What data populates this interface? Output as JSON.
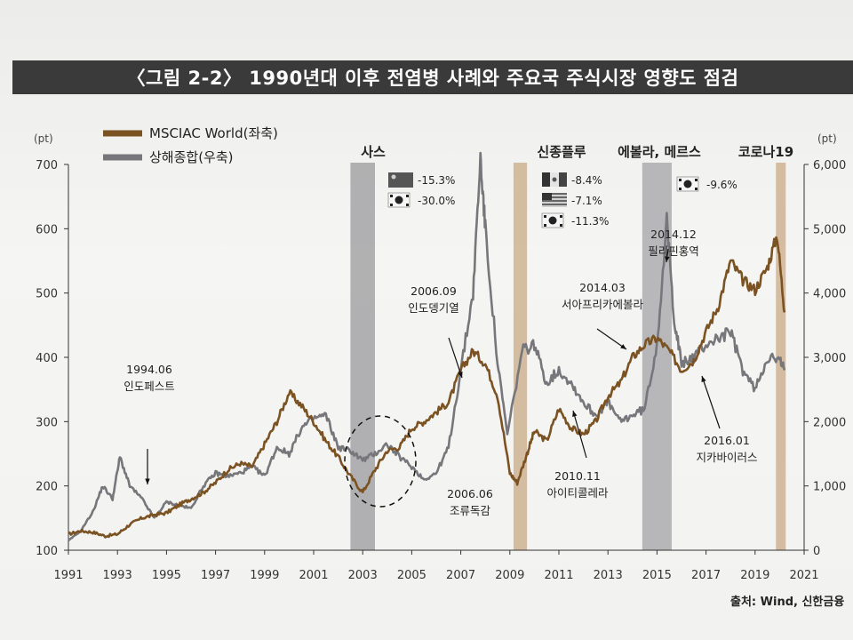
{
  "title": "〈그림 2-2〉 1990년대 이후 전염병 사례와 주요국 주식시장 영향도 점검",
  "source": "출처: Wind, 신한금융",
  "chart_data": {
    "type": "line",
    "x_ticks": [
      "1991",
      "1993",
      "1995",
      "1997",
      "1999",
      "2001",
      "2003",
      "2005",
      "2007",
      "2009",
      "2011",
      "2013",
      "2015",
      "2017",
      "2019",
      "2021"
    ],
    "xlim": [
      1991,
      2021
    ],
    "left_axis": {
      "unit": "(pt)",
      "ylim": [
        100,
        700
      ],
      "ticks": [
        "100",
        "200",
        "300",
        "400",
        "500",
        "600",
        "700"
      ]
    },
    "right_axis": {
      "unit": "(pt)",
      "ylim": [
        0,
        6000
      ],
      "ticks": [
        "0",
        "1,000",
        "2,000",
        "3,000",
        "4,000",
        "5,000",
        "6,000"
      ]
    },
    "legend": {
      "placement": "top-left"
    },
    "series": [
      {
        "name": "MSCIAC World(좌축)",
        "axis": "left",
        "color": "#7b5222",
        "points": [
          [
            1991.0,
            125
          ],
          [
            1991.5,
            130
          ],
          [
            1992.0,
            128
          ],
          [
            1992.5,
            122
          ],
          [
            1993.0,
            125
          ],
          [
            1993.5,
            140
          ],
          [
            1994.0,
            150
          ],
          [
            1994.5,
            155
          ],
          [
            1995.0,
            158
          ],
          [
            1995.5,
            170
          ],
          [
            1996.0,
            180
          ],
          [
            1996.5,
            190
          ],
          [
            1997.0,
            205
          ],
          [
            1997.5,
            225
          ],
          [
            1998.0,
            235
          ],
          [
            1998.5,
            230
          ],
          [
            1999.0,
            265
          ],
          [
            1999.5,
            300
          ],
          [
            2000.0,
            345
          ],
          [
            2000.5,
            325
          ],
          [
            2001.0,
            300
          ],
          [
            2001.5,
            270
          ],
          [
            2002.0,
            245
          ],
          [
            2002.5,
            215
          ],
          [
            2003.0,
            190
          ],
          [
            2003.5,
            225
          ],
          [
            2004.0,
            255
          ],
          [
            2004.5,
            260
          ],
          [
            2005.0,
            290
          ],
          [
            2005.5,
            300
          ],
          [
            2006.0,
            315
          ],
          [
            2006.5,
            330
          ],
          [
            2007.0,
            380
          ],
          [
            2007.5,
            410
          ],
          [
            2008.0,
            390
          ],
          [
            2008.5,
            340
          ],
          [
            2009.0,
            220
          ],
          [
            2009.3,
            205
          ],
          [
            2009.7,
            250
          ],
          [
            2010.0,
            285
          ],
          [
            2010.5,
            270
          ],
          [
            2011.0,
            320
          ],
          [
            2011.5,
            290
          ],
          [
            2012.0,
            280
          ],
          [
            2012.5,
            300
          ],
          [
            2013.0,
            340
          ],
          [
            2013.5,
            360
          ],
          [
            2014.0,
            400
          ],
          [
            2014.5,
            420
          ],
          [
            2015.0,
            430
          ],
          [
            2015.5,
            410
          ],
          [
            2016.0,
            380
          ],
          [
            2016.5,
            395
          ],
          [
            2017.0,
            440
          ],
          [
            2017.5,
            480
          ],
          [
            2018.0,
            550
          ],
          [
            2018.5,
            520
          ],
          [
            2019.0,
            505
          ],
          [
            2019.5,
            540
          ],
          [
            2019.9,
            590
          ],
          [
            2020.2,
            470
          ]
        ]
      },
      {
        "name": "상해종합(우축)",
        "axis": "right",
        "color": "#77777b",
        "points": [
          [
            1991.0,
            150
          ],
          [
            1991.5,
            300
          ],
          [
            1992.0,
            600
          ],
          [
            1992.4,
            1000
          ],
          [
            1992.8,
            800
          ],
          [
            1993.1,
            1450
          ],
          [
            1993.5,
            1000
          ],
          [
            1994.0,
            800
          ],
          [
            1994.5,
            500
          ],
          [
            1995.0,
            750
          ],
          [
            1995.5,
            700
          ],
          [
            1996.0,
            650
          ],
          [
            1996.5,
            1000
          ],
          [
            1997.0,
            1200
          ],
          [
            1997.5,
            1150
          ],
          [
            1998.0,
            1200
          ],
          [
            1998.5,
            1300
          ],
          [
            1999.0,
            1150
          ],
          [
            1999.5,
            1600
          ],
          [
            2000.0,
            1500
          ],
          [
            2000.5,
            1900
          ],
          [
            2001.0,
            2050
          ],
          [
            2001.5,
            2100
          ],
          [
            2002.0,
            1600
          ],
          [
            2002.5,
            1550
          ],
          [
            2003.0,
            1400
          ],
          [
            2003.5,
            1500
          ],
          [
            2004.0,
            1650
          ],
          [
            2004.5,
            1450
          ],
          [
            2005.0,
            1300
          ],
          [
            2005.5,
            1100
          ],
          [
            2006.0,
            1200
          ],
          [
            2006.5,
            1600
          ],
          [
            2007.0,
            2800
          ],
          [
            2007.5,
            4000
          ],
          [
            2007.8,
            6100
          ],
          [
            2008.0,
            5000
          ],
          [
            2008.5,
            2900
          ],
          [
            2008.9,
            1800
          ],
          [
            2009.5,
            3100
          ],
          [
            2010.0,
            3200
          ],
          [
            2010.5,
            2600
          ],
          [
            2011.0,
            2800
          ],
          [
            2011.5,
            2600
          ],
          [
            2012.0,
            2300
          ],
          [
            2012.5,
            2100
          ],
          [
            2013.0,
            2300
          ],
          [
            2013.5,
            2000
          ],
          [
            2014.0,
            2100
          ],
          [
            2014.5,
            2200
          ],
          [
            2015.0,
            3200
          ],
          [
            2015.4,
            5100
          ],
          [
            2015.7,
            3600
          ],
          [
            2016.0,
            2900
          ],
          [
            2016.5,
            3000
          ],
          [
            2017.0,
            3200
          ],
          [
            2017.5,
            3300
          ],
          [
            2018.0,
            3400
          ],
          [
            2018.5,
            2800
          ],
          [
            2019.0,
            2500
          ],
          [
            2019.5,
            3000
          ],
          [
            2020.0,
            2950
          ],
          [
            2020.2,
            2800
          ]
        ]
      }
    ],
    "periods": [
      {
        "label": "사스",
        "from": 2002.5,
        "to": 2003.5,
        "color": "#9a9a9c",
        "flags": [
          {
            "flag": "china-flag",
            "value": "-15.3%"
          },
          {
            "flag": "korea-flag",
            "value": "-30.0%"
          }
        ]
      },
      {
        "label": "신종플루",
        "from": 2009.15,
        "to": 2009.7,
        "color": "#caa985",
        "flags": [
          {
            "flag": "mexico-flag",
            "value": "-8.4%"
          },
          {
            "flag": "usa-flag",
            "value": "-7.1%"
          },
          {
            "flag": "korea-flag",
            "value": "-11.3%"
          }
        ]
      },
      {
        "label": "에볼라, 메르스",
        "from": 2014.4,
        "to": 2015.6,
        "color": "#a3a3a7",
        "flags": [
          {
            "flag": "korea-flag",
            "value": "-9.6%"
          }
        ]
      },
      {
        "label": "코로나19",
        "from": 2019.85,
        "to": 2020.25,
        "color": "#caa985",
        "flags": []
      }
    ],
    "annotations": [
      {
        "date": "1994.06",
        "text": "인도페스트"
      },
      {
        "date": "2006.09",
        "text": "인도뎅기열"
      },
      {
        "date": "2006.06",
        "text": "조류독감"
      },
      {
        "date": "2010.11",
        "text": "아이티콜레라"
      },
      {
        "date": "2014.03",
        "text": "서아프리카에볼라"
      },
      {
        "date": "2014.12",
        "text": "필리핀홍역"
      },
      {
        "date": "2016.01",
        "text": "지카바이러스"
      }
    ]
  }
}
